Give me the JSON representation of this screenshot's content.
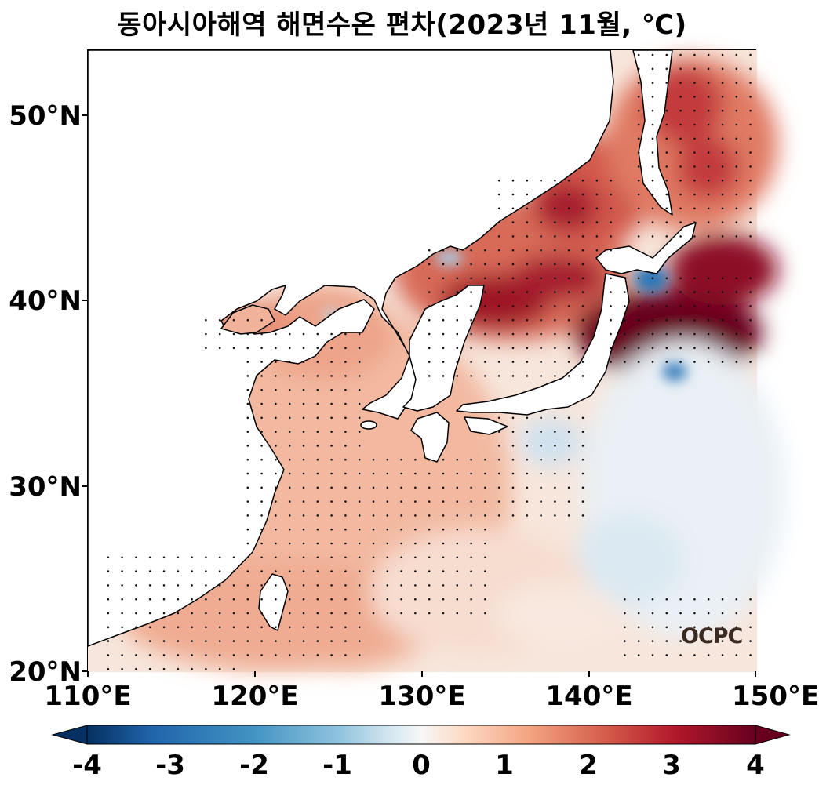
{
  "title": "동아시아해역 해면수온 편차(2023년 11월, ℃)",
  "map": {
    "lon_range": [
      110,
      150
    ],
    "lat_range": [
      20,
      53.5
    ],
    "x_ticks": [
      "110°E",
      "120°E",
      "130°E",
      "140°E",
      "150°E"
    ],
    "y_ticks": [
      "20°N",
      "30°N",
      "40°N",
      "50°N"
    ],
    "stippling": "dots mark statistically significant anomalies"
  },
  "colorbar": {
    "colormap": "RdBu_r",
    "range": [
      -4,
      4
    ],
    "extend": "both",
    "labels": [
      "-4",
      "-3",
      "-2",
      "-1",
      "0",
      "1",
      "2",
      "3",
      "4"
    ],
    "colors": [
      "#053061",
      "#2166ac",
      "#4393c3",
      "#92c5de",
      "#d1e5f0",
      "#f7f7f7",
      "#fddbc7",
      "#f4a582",
      "#d6604d",
      "#b2182b",
      "#67001f"
    ]
  },
  "logo": "OCPC"
}
